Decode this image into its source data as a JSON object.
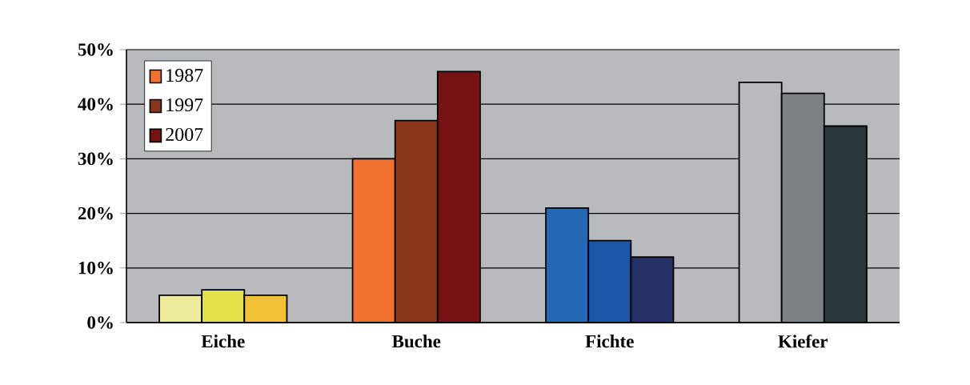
{
  "chart_data": {
    "type": "bar",
    "categories": [
      "Eiche",
      "Buche",
      "Fichte",
      "Kiefer"
    ],
    "series": [
      {
        "name": "1987",
        "color": "#f07030",
        "colors": [
          "#ecec9c",
          "#f07030",
          "#2468b4",
          "#b8bbbd"
        ],
        "values": [
          5,
          30,
          21,
          44
        ]
      },
      {
        "name": "1997",
        "color": "#8a381c",
        "colors": [
          "#e4e24a",
          "#8a381c",
          "#1b56a8",
          "#7b8184"
        ],
        "values": [
          6,
          37,
          15,
          42
        ]
      },
      {
        "name": "2007",
        "color": "#751214",
        "colors": [
          "#f2c232",
          "#751214",
          "#243066",
          "#29363a"
        ],
        "values": [
          5,
          46,
          12,
          36
        ]
      }
    ],
    "ylim": [
      0,
      50
    ],
    "yticks": [
      {
        "value": 0,
        "label": "0%"
      },
      {
        "value": 10,
        "label": "10%"
      },
      {
        "value": 20,
        "label": "20%"
      },
      {
        "value": 30,
        "label": "30%"
      },
      {
        "value": 40,
        "label": "40%"
      },
      {
        "value": 50,
        "label": "50%"
      }
    ],
    "grid": "y",
    "legend": "top left"
  }
}
